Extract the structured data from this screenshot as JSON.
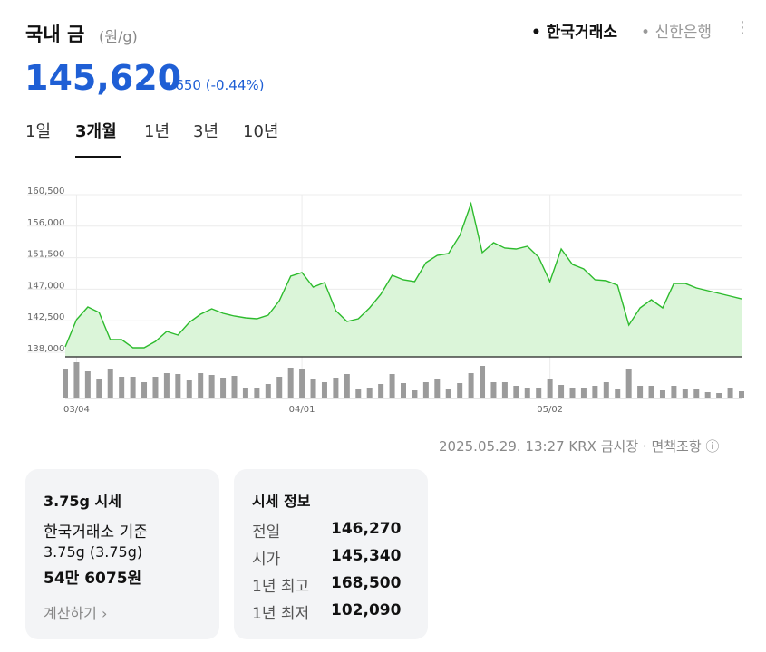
{
  "header": {
    "title": "국내 금",
    "unit": "(원/g)",
    "sources": [
      {
        "label": "한국거래소",
        "active": true
      },
      {
        "label": "신한은행",
        "active": false
      }
    ]
  },
  "price": {
    "value": "145,620",
    "change": "650",
    "change_pct": "(-0.44%)"
  },
  "tabs": [
    {
      "label": "1일",
      "active": false
    },
    {
      "label": "3개월",
      "active": true
    },
    {
      "label": "1년",
      "active": false
    },
    {
      "label": "3년",
      "active": false
    },
    {
      "label": "10년",
      "active": false
    }
  ],
  "chart_data": {
    "type": "area",
    "color": "#2dbb2d",
    "fill": "#dbf5d9",
    "volume_color": "#9b9b9b",
    "grid": true,
    "ylim": [
      138000,
      160500
    ],
    "yticks": [
      {
        "value": 138000,
        "label": "138,000"
      },
      {
        "value": 142500,
        "label": "142,500"
      },
      {
        "value": 147000,
        "label": "147,000"
      },
      {
        "value": 151500,
        "label": "151,500"
      },
      {
        "value": 156000,
        "label": "156,000"
      },
      {
        "value": 160500,
        "label": "160,500"
      }
    ],
    "categories": [
      null,
      "03/04",
      null,
      null,
      null,
      null,
      null,
      null,
      null,
      null,
      null,
      null,
      null,
      null,
      null,
      null,
      null,
      null,
      null,
      null,
      null,
      "04/01",
      null,
      null,
      null,
      null,
      null,
      null,
      null,
      null,
      null,
      null,
      null,
      null,
      null,
      null,
      null,
      null,
      null,
      null,
      null,
      null,
      null,
      "05/02",
      null,
      null,
      null,
      null,
      null,
      null,
      null,
      null,
      null,
      null,
      null,
      null,
      null,
      null,
      null,
      null,
      null
    ],
    "values": [
      138780,
      142660,
      144470,
      143690,
      139810,
      139810,
      138650,
      138650,
      139550,
      140970,
      140460,
      142270,
      143430,
      144210,
      143560,
      143170,
      142910,
      142780,
      143300,
      145370,
      148860,
      149380,
      147310,
      147960,
      143950,
      142400,
      142780,
      144340,
      146280,
      148990,
      148340,
      148090,
      150800,
      151840,
      152090,
      154680,
      159210,
      152220,
      153650,
      152870,
      152740,
      153130,
      151580,
      148090,
      152740,
      150540,
      149900,
      148340,
      148220,
      147570,
      141880,
      144340,
      145500,
      144340,
      147830,
      147830,
      147180,
      146790,
      146400,
      146020,
      145620
    ],
    "volume": [
      33,
      40,
      30,
      21,
      32,
      24,
      24,
      18,
      24,
      28,
      27,
      20,
      28,
      26,
      23,
      25,
      12,
      12,
      16,
      24,
      34,
      33,
      22,
      18,
      23,
      27,
      10,
      11,
      16,
      27,
      17,
      9,
      18,
      22,
      10,
      17,
      28,
      36,
      18,
      18,
      14,
      12,
      12,
      22,
      15,
      12,
      12,
      14,
      18,
      10,
      33,
      14,
      14,
      9,
      14,
      10,
      10,
      7,
      6,
      12,
      8
    ]
  },
  "footer": {
    "timestamp": "2025.05.29. 13:27 KRX 금시장",
    "disclaimer": "면책조항"
  },
  "calc_card": {
    "title": "3.75g 시세",
    "basis": "한국거래소 기준",
    "weight": "3.75g (3.75g)",
    "amount": "54만 6075원",
    "action": "계산하기"
  },
  "info_card": {
    "title": "시세 정보",
    "rows": [
      [
        "전일",
        "146,270"
      ],
      [
        "시가",
        "145,340"
      ],
      [
        "1년 최고",
        "168,500"
      ],
      [
        "1년 최저",
        "102,090"
      ]
    ]
  }
}
